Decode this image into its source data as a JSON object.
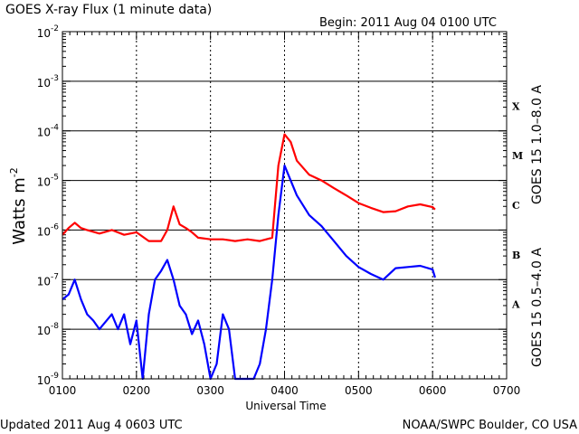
{
  "header": {
    "title": "GOES X-ray Flux (1 minute data)",
    "begin": "Begin: 2011 Aug 04 0100 UTC"
  },
  "footer": {
    "updated": "Updated 2011 Aug  4 0603 UTC",
    "credit": "NOAA/SWPC Boulder, CO USA"
  },
  "chart_data": {
    "type": "line",
    "title": "GOES X-ray Flux (1 minute data)",
    "xlabel": "Universal Time",
    "ylabel": "Watts m",
    "ylabel_exponent": "-2",
    "y_scale": "log",
    "ylim": [
      1e-09,
      0.01
    ],
    "xlim": [
      "0100",
      "0700"
    ],
    "x_ticks": [
      "0100",
      "0200",
      "0300",
      "0400",
      "0500",
      "0600",
      "0700"
    ],
    "y_ticks": [
      {
        "value": 0.01,
        "exp": "-2"
      },
      {
        "value": 0.001,
        "exp": "-3"
      },
      {
        "value": 0.0001,
        "exp": "-4"
      },
      {
        "value": 1e-05,
        "exp": "-5"
      },
      {
        "value": 1e-06,
        "exp": "-6"
      },
      {
        "value": 1e-07,
        "exp": "-7"
      },
      {
        "value": 1e-08,
        "exp": "-8"
      },
      {
        "value": 1e-09,
        "exp": "-9"
      }
    ],
    "flare_classes": [
      {
        "label": "X",
        "value": 0.0001
      },
      {
        "label": "M",
        "value": 1e-05
      },
      {
        "label": "C",
        "value": 1e-06
      },
      {
        "label": "B",
        "value": 1e-07
      },
      {
        "label": "A",
        "value": 1e-08
      }
    ],
    "grid": true,
    "series": [
      {
        "name": "GOES 15 1.0–8.0 A",
        "color": "#ff0000",
        "x": [
          "0100",
          "0105",
          "0110",
          "0115",
          "0120",
          "0130",
          "0140",
          "0150",
          "0200",
          "0210",
          "0220",
          "0225",
          "0230",
          "0235",
          "0240",
          "0245",
          "0250",
          "0300",
          "0310",
          "0320",
          "0330",
          "0340",
          "0350",
          "0355",
          "0400",
          "0405",
          "0410",
          "0420",
          "0430",
          "0440",
          "0450",
          "0500",
          "0510",
          "0520",
          "0530",
          "0540",
          "0550",
          "0600",
          "0602"
        ],
        "values": [
          8e-07,
          1.1e-06,
          1.4e-06,
          1.1e-06,
          1e-06,
          8.5e-07,
          1e-06,
          8e-07,
          9e-07,
          6e-07,
          6e-07,
          1e-06,
          3e-06,
          1.3e-06,
          1.1e-06,
          9e-07,
          7e-07,
          6.5e-07,
          6.5e-07,
          6e-07,
          6.5e-07,
          6e-07,
          7e-07,
          2e-05,
          8.5e-05,
          6e-05,
          2.5e-05,
          1.3e-05,
          1e-05,
          7e-06,
          5e-06,
          3.5e-06,
          2.8e-06,
          2.3e-06,
          2.4e-06,
          3e-06,
          3.3e-06,
          2.9e-06,
          2.6e-06
        ]
      },
      {
        "name": "GOES 15 0.5–4.0 A",
        "color": "#0000ff",
        "x": [
          "0100",
          "0105",
          "0110",
          "0115",
          "0120",
          "0125",
          "0130",
          "0140",
          "0145",
          "0150",
          "0155",
          "0200",
          "0205",
          "0210",
          "0215",
          "0220",
          "0225",
          "0230",
          "0235",
          "0240",
          "0245",
          "0250",
          "0255",
          "0300",
          "0305",
          "0310",
          "0315",
          "0320",
          "0325",
          "0330",
          "0335",
          "0340",
          "0345",
          "0350",
          "0355",
          "0400",
          "0405",
          "0410",
          "0420",
          "0430",
          "0440",
          "0450",
          "0500",
          "0510",
          "0520",
          "0530",
          "0540",
          "0550",
          "0600",
          "0602"
        ],
        "values": [
          4e-08,
          5e-08,
          1e-07,
          4e-08,
          2e-08,
          1.5e-08,
          1e-08,
          2e-08,
          1e-08,
          2e-08,
          5e-09,
          1.5e-08,
          1e-09,
          2e-08,
          1e-07,
          1.5e-07,
          2.5e-07,
          1e-07,
          3e-08,
          2e-08,
          8e-09,
          1.5e-08,
          5e-09,
          1e-09,
          2e-09,
          2e-08,
          1e-08,
          1e-09,
          1e-09,
          1e-09,
          1e-09,
          2e-09,
          1e-08,
          1e-07,
          2e-06,
          2e-05,
          1e-05,
          5e-06,
          2e-06,
          1.2e-06,
          6e-07,
          3e-07,
          1.8e-07,
          1.3e-07,
          1e-07,
          1.7e-07,
          1.8e-07,
          1.9e-07,
          1.6e-07,
          1.1e-07
        ]
      }
    ]
  }
}
